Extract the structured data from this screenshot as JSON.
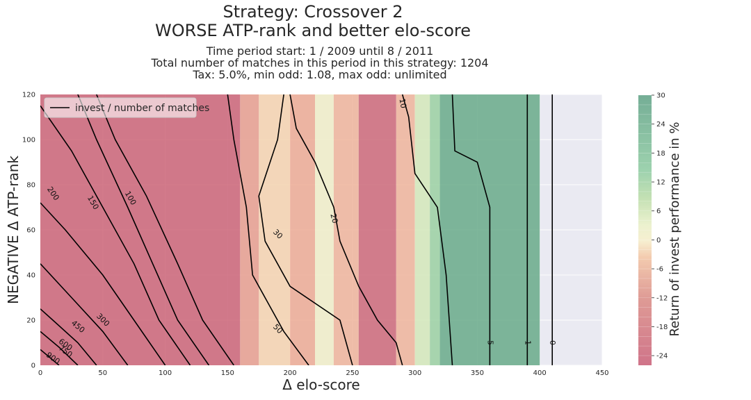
{
  "chart_data": {
    "type": "contour",
    "title": [
      "Strategy: Crossover 2",
      "WORSE ATP-rank and better elo-score"
    ],
    "subtitle": [
      "Time period start: 1 / 2009 until 8 / 2011",
      "Total number of matches in this period in this strategy: 1204",
      "Tax: 5.0%, min odd: 1.08, max odd: unlimited"
    ],
    "xlabel": "Δ elo-score",
    "ylabel": "NEGATIVE Δ ATP-rank",
    "colorbar_label": "Return of invest performance in %",
    "xlim": [
      0,
      450
    ],
    "ylim": [
      0,
      120
    ],
    "xticks": [
      0,
      50,
      100,
      150,
      200,
      250,
      300,
      350,
      400,
      450
    ],
    "yticks": [
      0,
      20,
      40,
      60,
      80,
      100,
      120
    ],
    "colorbar_range": [
      -26,
      30
    ],
    "colorbar_ticks": [
      30,
      24,
      18,
      12,
      6,
      0,
      -6,
      -12,
      -18,
      -24
    ],
    "legend": {
      "label": "invest / number of matches",
      "placement": "top-left"
    },
    "filled_columns": [
      {
        "x0": 0,
        "x1": 160,
        "roi": -22
      },
      {
        "x0": 160,
        "x1": 175,
        "roi": -8
      },
      {
        "x0": 175,
        "x1": 200,
        "roi": -2
      },
      {
        "x0": 200,
        "x1": 220,
        "roi": -6
      },
      {
        "x0": 220,
        "x1": 235,
        "roi": 1
      },
      {
        "x0": 235,
        "x1": 255,
        "roi": -5
      },
      {
        "x0": 255,
        "x1": 285,
        "roi": -20
      },
      {
        "x0": 285,
        "x1": 300,
        "roi": -5
      },
      {
        "x0": 300,
        "x1": 312,
        "roi": 5
      },
      {
        "x0": 312,
        "x1": 320,
        "roi": 12
      },
      {
        "x0": 320,
        "x1": 400,
        "roi": 26
      }
    ],
    "contour_lines": [
      {
        "level": "0",
        "points": [
          [
            410,
            0
          ],
          [
            410,
            120
          ]
        ]
      },
      {
        "level": "1",
        "points": [
          [
            390,
            0
          ],
          [
            390,
            120
          ]
        ]
      },
      {
        "level": "5",
        "points": [
          [
            360,
            0
          ],
          [
            360,
            70
          ],
          [
            350,
            90
          ],
          [
            332,
            95
          ],
          [
            330,
            120
          ]
        ]
      },
      {
        "level": "10",
        "points": [
          [
            330,
            0
          ],
          [
            325,
            40
          ],
          [
            318,
            70
          ],
          [
            300,
            85
          ],
          [
            295,
            110
          ],
          [
            290,
            120
          ]
        ]
      },
      {
        "level": "20",
        "points": [
          [
            290,
            0
          ],
          [
            285,
            10
          ],
          [
            270,
            20
          ],
          [
            255,
            35
          ],
          [
            240,
            55
          ],
          [
            235,
            70
          ],
          [
            220,
            90
          ],
          [
            205,
            105
          ],
          [
            200,
            120
          ]
        ]
      },
      {
        "level": "30",
        "points": [
          [
            250,
            0
          ],
          [
            240,
            20
          ],
          [
            200,
            35
          ],
          [
            180,
            55
          ],
          [
            175,
            75
          ],
          [
            190,
            100
          ],
          [
            195,
            120
          ]
        ]
      },
      {
        "level": "50",
        "points": [
          [
            215,
            0
          ],
          [
            195,
            15
          ],
          [
            170,
            40
          ],
          [
            165,
            70
          ],
          [
            155,
            100
          ],
          [
            150,
            120
          ]
        ]
      },
      {
        "level": "100",
        "points": [
          [
            155,
            0
          ],
          [
            130,
            20
          ],
          [
            110,
            45
          ],
          [
            85,
            75
          ],
          [
            60,
            100
          ],
          [
            45,
            120
          ]
        ]
      },
      {
        "level": "150",
        "points": [
          [
            135,
            0
          ],
          [
            110,
            20
          ],
          [
            90,
            45
          ],
          [
            70,
            70
          ],
          [
            45,
            100
          ],
          [
            30,
            120
          ]
        ]
      },
      {
        "level": "200",
        "points": [
          [
            120,
            0
          ],
          [
            95,
            20
          ],
          [
            75,
            45
          ],
          [
            50,
            70
          ],
          [
            25,
            95
          ],
          [
            0,
            115
          ]
        ]
      },
      {
        "level": "300",
        "points": [
          [
            100,
            0
          ],
          [
            75,
            20
          ],
          [
            50,
            40
          ],
          [
            20,
            60
          ],
          [
            0,
            72
          ]
        ]
      },
      {
        "level": "450",
        "points": [
          [
            70,
            0
          ],
          [
            50,
            15
          ],
          [
            25,
            30
          ],
          [
            0,
            45
          ]
        ]
      },
      {
        "level": "600",
        "points": [
          [
            45,
            0
          ],
          [
            30,
            10
          ],
          [
            10,
            20
          ],
          [
            0,
            25
          ]
        ]
      },
      {
        "level": "750",
        "points": [
          [
            30,
            0
          ],
          [
            15,
            8
          ],
          [
            0,
            15
          ]
        ]
      },
      {
        "level": "900",
        "points": [
          [
            15,
            0
          ],
          [
            0,
            7
          ]
        ]
      }
    ],
    "contour_line_labels": [
      {
        "text": "10",
        "x": 290,
        "y": 116,
        "angle": 80
      },
      {
        "text": "200",
        "x": 10,
        "y": 76,
        "angle": 55
      },
      {
        "text": "150",
        "x": 42,
        "y": 72,
        "angle": 60
      },
      {
        "text": "100",
        "x": 72,
        "y": 74,
        "angle": 60
      },
      {
        "text": "20",
        "x": 235,
        "y": 65,
        "angle": 75
      },
      {
        "text": "30",
        "x": 190,
        "y": 58,
        "angle": 45
      },
      {
        "text": "50",
        "x": 190,
        "y": 16,
        "angle": 45
      },
      {
        "text": "300",
        "x": 50,
        "y": 20,
        "angle": 45
      },
      {
        "text": "450",
        "x": 30,
        "y": 17,
        "angle": 40
      },
      {
        "text": "600",
        "x": 20,
        "y": 9,
        "angle": 35
      },
      {
        "text": "750",
        "x": 20,
        "y": 6,
        "angle": 35
      },
      {
        "text": "900",
        "x": 10,
        "y": 3,
        "angle": 35
      },
      {
        "text": "5",
        "x": 360,
        "y": 10,
        "angle": 90
      },
      {
        "text": "1",
        "x": 390,
        "y": 10,
        "angle": 90
      },
      {
        "text": "0",
        "x": 410,
        "y": 10,
        "angle": 90
      }
    ]
  }
}
